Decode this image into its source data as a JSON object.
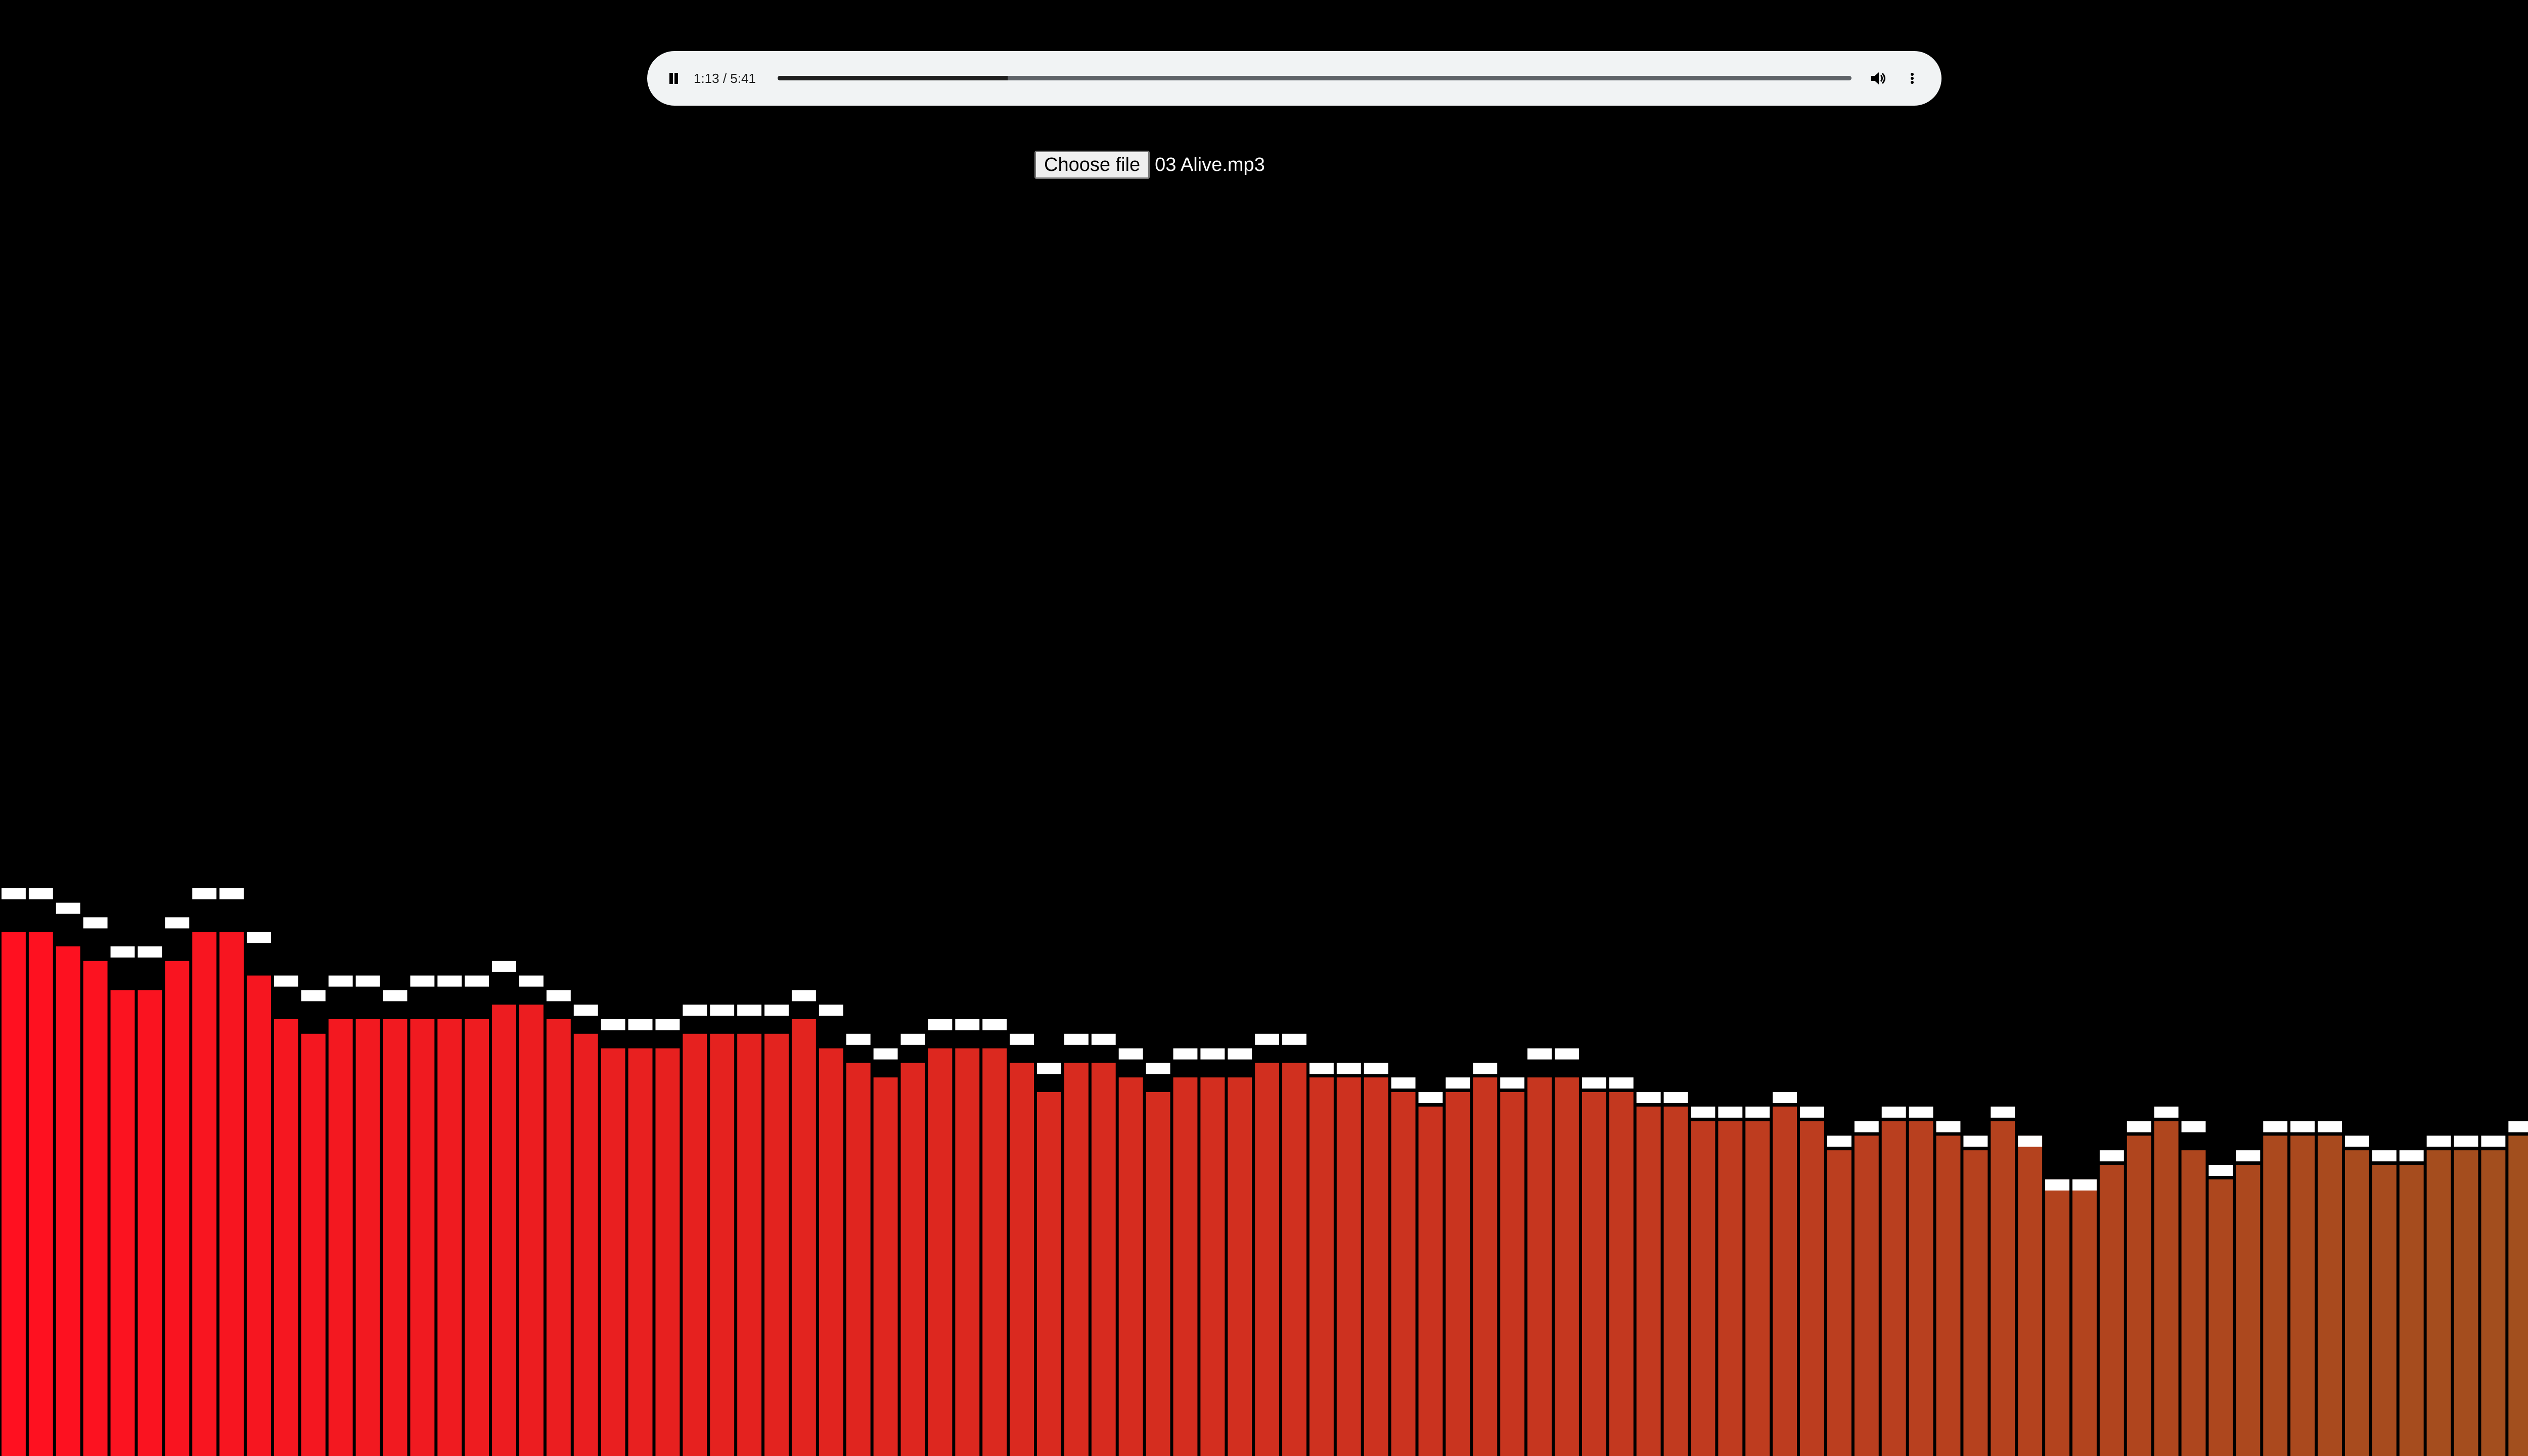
{
  "player": {
    "state": "playing",
    "pause_icon": "pause-icon",
    "time_display": "1:13 / 5:41",
    "progress": 0.214,
    "volume_icon": "volume-icon",
    "menu_icon": "more-vert-icon"
  },
  "file_input": {
    "button_label": "Choose file",
    "file_name": "03 Alive.mp3"
  },
  "visualizer": {
    "bar_count": 95,
    "levels": [
      0.36,
      0.36,
      0.35,
      0.34,
      0.32,
      0.32,
      0.34,
      0.36,
      0.36,
      0.33,
      0.3,
      0.29,
      0.3,
      0.3,
      0.3,
      0.3,
      0.3,
      0.3,
      0.31,
      0.31,
      0.3,
      0.29,
      0.28,
      0.28,
      0.28,
      0.29,
      0.29,
      0.29,
      0.29,
      0.3,
      0.28,
      0.27,
      0.26,
      0.27,
      0.28,
      0.28,
      0.28,
      0.27,
      0.25,
      0.27,
      0.27,
      0.26,
      0.25,
      0.26,
      0.26,
      0.26,
      0.27,
      0.27,
      0.26,
      0.26,
      0.26,
      0.25,
      0.24,
      0.25,
      0.26,
      0.25,
      0.26,
      0.26,
      0.25,
      0.25,
      0.24,
      0.24,
      0.23,
      0.23,
      0.23,
      0.24,
      0.23,
      0.21,
      0.22,
      0.23,
      0.23,
      0.22,
      0.21,
      0.23,
      0.22,
      0.19,
      0.19,
      0.2,
      0.22,
      0.23,
      0.21,
      0.19,
      0.2,
      0.22,
      0.22,
      0.22,
      0.21,
      0.2,
      0.2,
      0.21,
      0.21,
      0.21,
      0.22,
      0.23,
      0.23
    ],
    "peaks": [
      0.39,
      0.39,
      0.38,
      0.37,
      0.35,
      0.35,
      0.37,
      0.39,
      0.39,
      0.36,
      0.33,
      0.32,
      0.33,
      0.33,
      0.32,
      0.33,
      0.33,
      0.33,
      0.34,
      0.33,
      0.32,
      0.31,
      0.3,
      0.3,
      0.3,
      0.31,
      0.31,
      0.31,
      0.31,
      0.32,
      0.31,
      0.29,
      0.28,
      0.29,
      0.3,
      0.3,
      0.3,
      0.29,
      0.27,
      0.29,
      0.29,
      0.28,
      0.27,
      0.28,
      0.28,
      0.28,
      0.29,
      0.29,
      0.27,
      0.27,
      0.27,
      0.26,
      0.25,
      0.26,
      0.27,
      0.26,
      0.28,
      0.28,
      0.26,
      0.26,
      0.25,
      0.25,
      0.24,
      0.24,
      0.24,
      0.25,
      0.24,
      0.22,
      0.23,
      0.24,
      0.24,
      0.23,
      0.22,
      0.24,
      0.22,
      0.19,
      0.19,
      0.21,
      0.23,
      0.24,
      0.23,
      0.2,
      0.21,
      0.23,
      0.23,
      0.23,
      0.22,
      0.21,
      0.21,
      0.22,
      0.22,
      0.22,
      0.23,
      0.24,
      0.24
    ],
    "colors": {
      "low": "#ff1020",
      "high": "#a0501e",
      "peak_cap": "#ffffff",
      "background": "#000000"
    }
  }
}
